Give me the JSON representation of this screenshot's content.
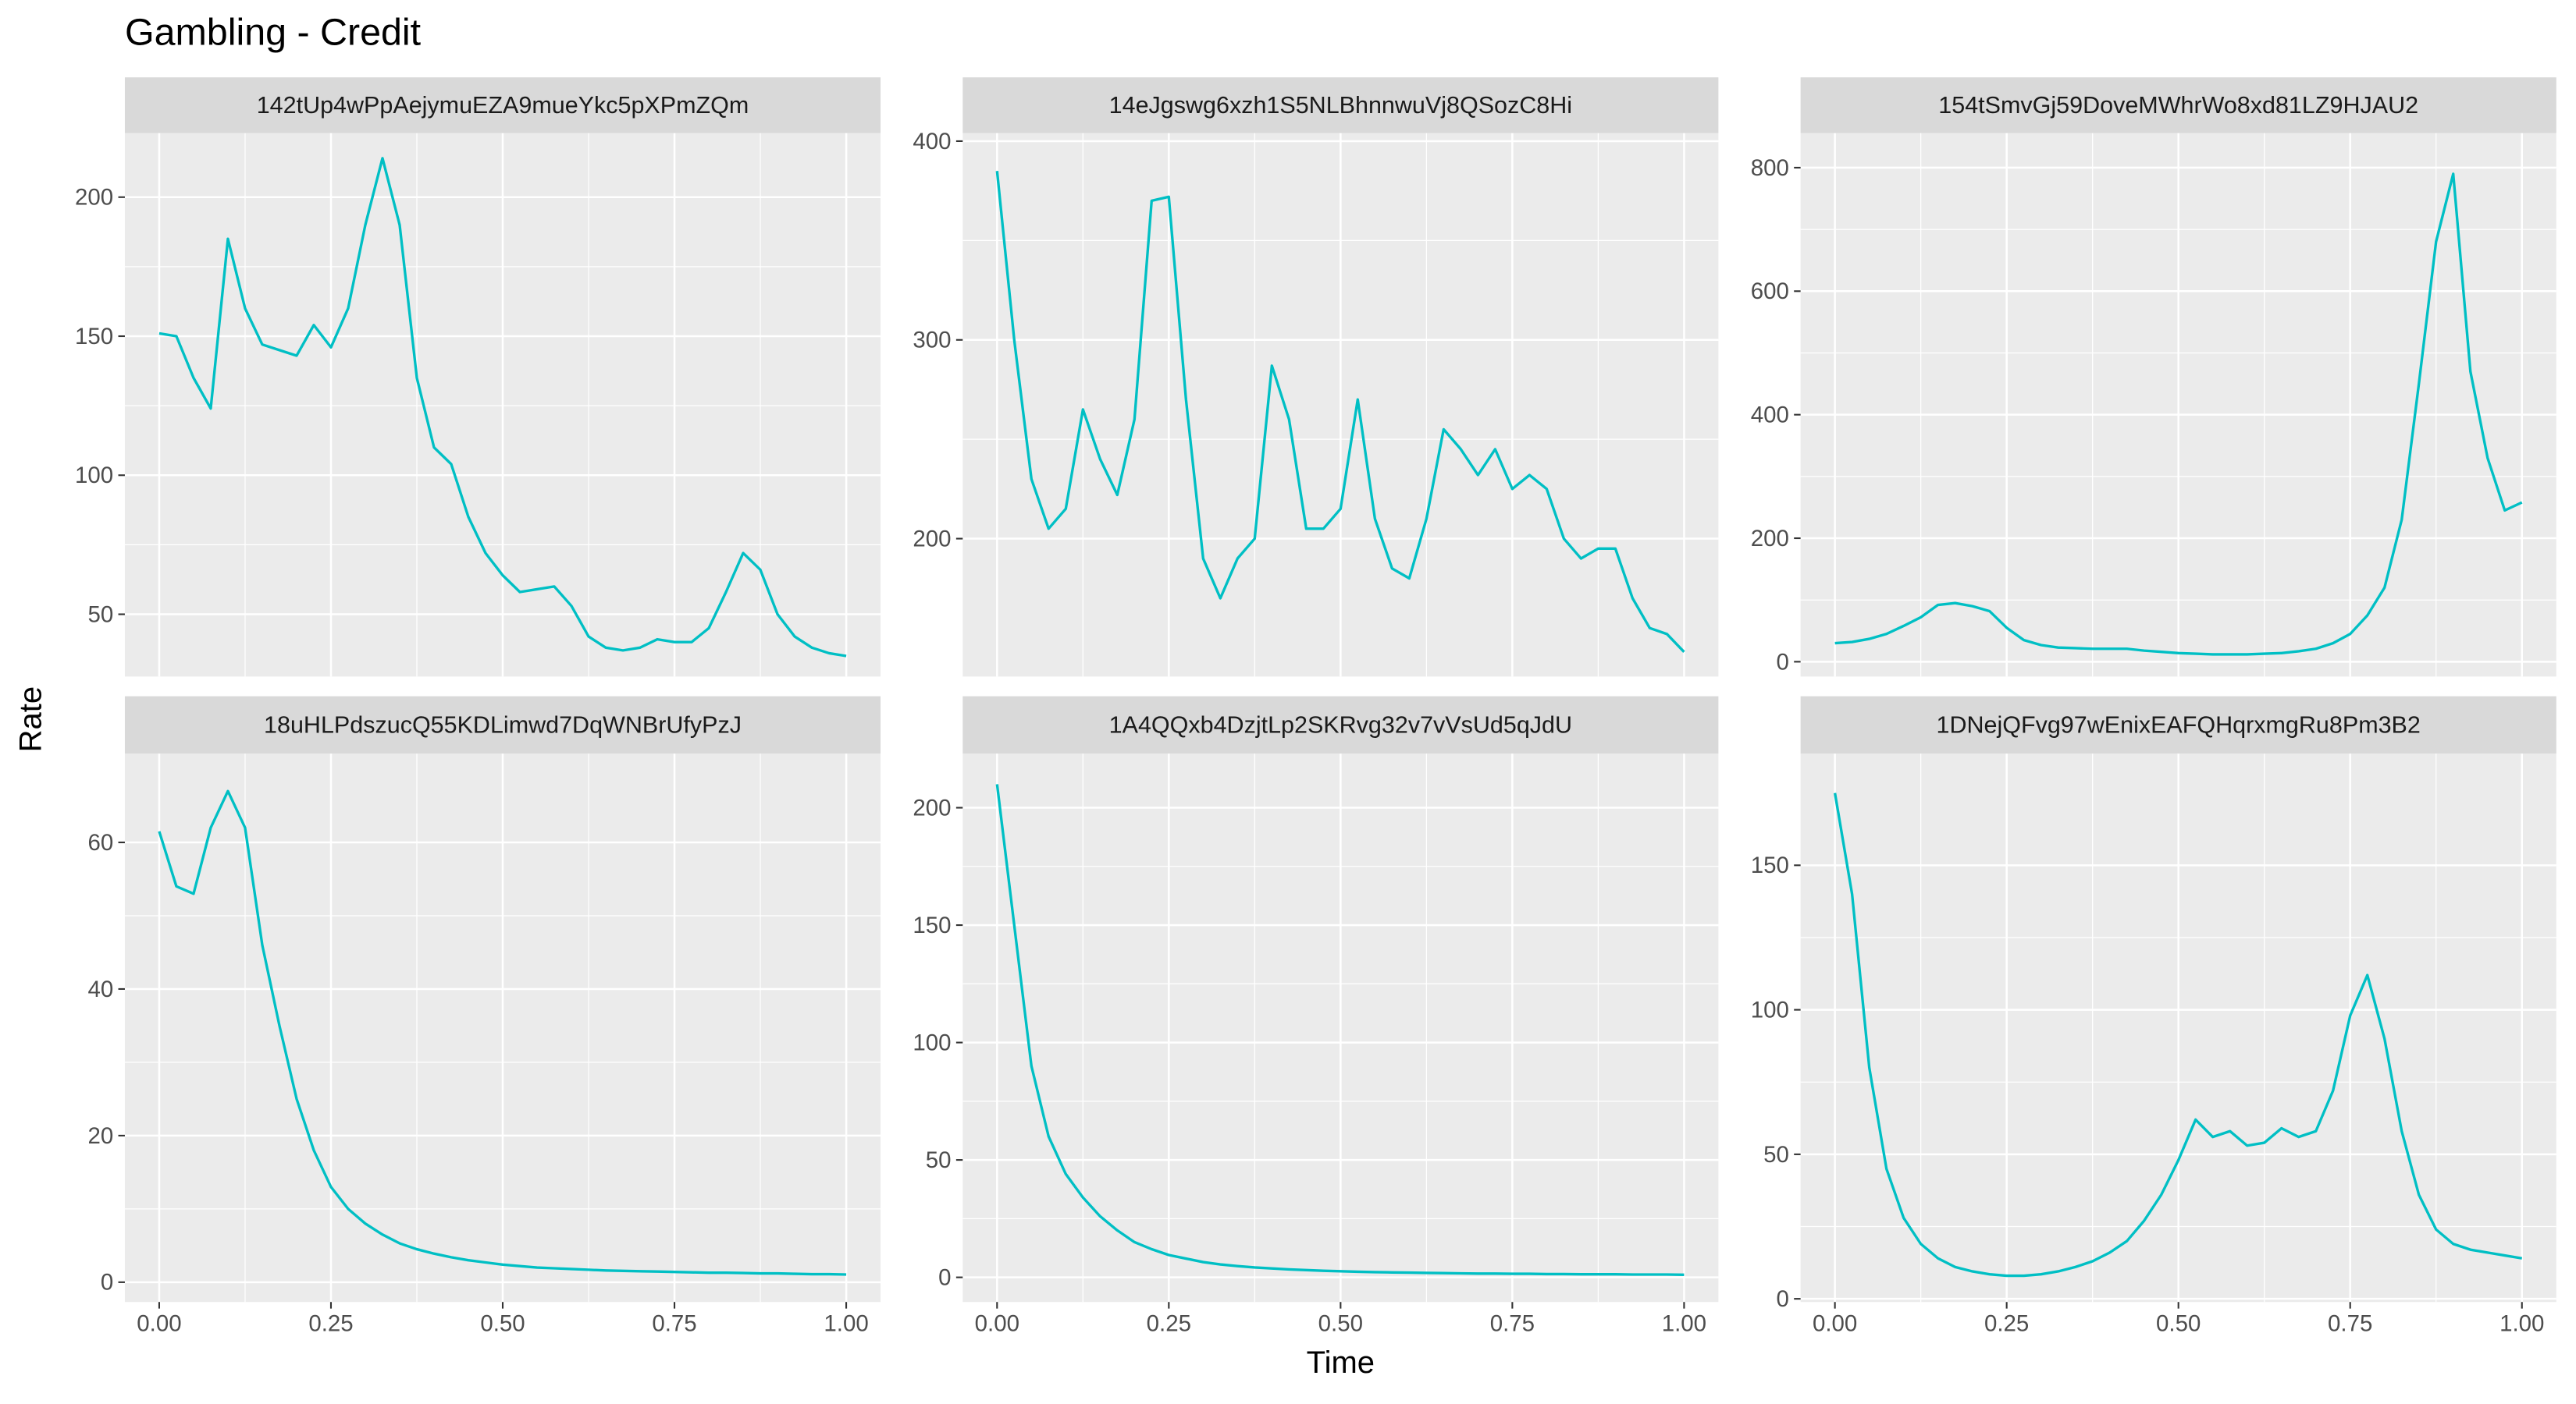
{
  "title": "Gambling - Credit",
  "x_label": "Time",
  "y_label": "Rate",
  "chart_data": [
    {
      "type": "line",
      "title": "142tUp4wPpAejymuEZA9mueYkc5pXPmZQm",
      "color": "#00BFC4",
      "x": [
        0,
        0.025,
        0.05,
        0.075,
        0.1,
        0.125,
        0.15,
        0.175,
        0.2,
        0.225,
        0.25,
        0.275,
        0.3,
        0.325,
        0.35,
        0.375,
        0.4,
        0.425,
        0.45,
        0.475,
        0.5,
        0.525,
        0.55,
        0.575,
        0.6,
        0.625,
        0.65,
        0.675,
        0.7,
        0.725,
        0.75,
        0.775,
        0.8,
        0.825,
        0.85,
        0.875,
        0.9,
        0.925,
        0.95,
        0.975,
        1
      ],
      "values": [
        151,
        150,
        135,
        124,
        185,
        160,
        147,
        145,
        143,
        154,
        146,
        160,
        190,
        214,
        190,
        135,
        110,
        104,
        85,
        72,
        64,
        58,
        59,
        60,
        53,
        42,
        38,
        37,
        38,
        41,
        40,
        40,
        45,
        58,
        72,
        66,
        50,
        42,
        38,
        36,
        35
      ],
      "xlim": [
        -0.05,
        1.05
      ],
      "ylim": [
        27.6,
        223
      ],
      "xticks": [
        0,
        0.25,
        0.5,
        0.75,
        1
      ],
      "yticks": [
        50,
        100,
        150,
        200
      ]
    },
    {
      "type": "line",
      "title": "14eJgswg6xzh1S5NLBhnnwuVj8QSozC8Hi",
      "color": "#00BFC4",
      "x": [
        0,
        0.025,
        0.05,
        0.075,
        0.1,
        0.125,
        0.15,
        0.175,
        0.2,
        0.225,
        0.25,
        0.275,
        0.3,
        0.325,
        0.35,
        0.375,
        0.4,
        0.425,
        0.45,
        0.475,
        0.5,
        0.525,
        0.55,
        0.575,
        0.6,
        0.625,
        0.65,
        0.675,
        0.7,
        0.725,
        0.75,
        0.775,
        0.8,
        0.825,
        0.85,
        0.875,
        0.9,
        0.925,
        0.95,
        0.975,
        1
      ],
      "values": [
        385,
        300,
        230,
        205,
        215,
        265,
        240,
        222,
        260,
        370,
        372,
        270,
        190,
        170,
        190,
        200,
        287,
        260,
        205,
        205,
        215,
        270,
        210,
        185,
        180,
        210,
        255,
        245,
        232,
        245,
        225,
        232,
        225,
        200,
        190,
        195,
        195,
        170,
        155,
        152,
        143
      ],
      "xlim": [
        -0.05,
        1.05
      ],
      "ylim": [
        130.6,
        404
      ],
      "xticks": [
        0,
        0.25,
        0.5,
        0.75,
        1
      ],
      "yticks": [
        200,
        300,
        400
      ]
    },
    {
      "type": "line",
      "title": "154tSmvGj59DoveMWhrWo8xd81LZ9HJAU2",
      "color": "#00BFC4",
      "x": [
        0,
        0.025,
        0.05,
        0.075,
        0.1,
        0.125,
        0.15,
        0.175,
        0.2,
        0.225,
        0.25,
        0.275,
        0.3,
        0.325,
        0.35,
        0.375,
        0.4,
        0.425,
        0.45,
        0.475,
        0.5,
        0.525,
        0.55,
        0.575,
        0.6,
        0.625,
        0.65,
        0.675,
        0.7,
        0.725,
        0.75,
        0.775,
        0.8,
        0.825,
        0.85,
        0.875,
        0.9,
        0.925,
        0.95,
        0.975,
        1
      ],
      "values": [
        30,
        32,
        37,
        45,
        58,
        72,
        92,
        95,
        90,
        82,
        55,
        35,
        27,
        23,
        22,
        21,
        21,
        21,
        18,
        16,
        14,
        13,
        12,
        12,
        12,
        13,
        14,
        17,
        21,
        30,
        45,
        75,
        120,
        230,
        450,
        680,
        790,
        470,
        330,
        245,
        258
      ],
      "xlim": [
        -0.05,
        1.05
      ],
      "ylim": [
        -24,
        855.8
      ],
      "xticks": [
        0,
        0.25,
        0.5,
        0.75,
        1
      ],
      "yticks": [
        0,
        200,
        400,
        600,
        800
      ]
    },
    {
      "type": "line",
      "title": "18uHLPdszucQ55KDLimwd7DqWNBrUfyPzJ",
      "color": "#00BFC4",
      "x": [
        0,
        0.025,
        0.05,
        0.075,
        0.1,
        0.125,
        0.15,
        0.175,
        0.2,
        0.225,
        0.25,
        0.275,
        0.3,
        0.325,
        0.35,
        0.375,
        0.4,
        0.425,
        0.45,
        0.475,
        0.5,
        0.525,
        0.55,
        0.575,
        0.6,
        0.625,
        0.65,
        0.675,
        0.7,
        0.725,
        0.75,
        0.775,
        0.8,
        0.825,
        0.85,
        0.875,
        0.9,
        0.925,
        0.95,
        0.975,
        1
      ],
      "values": [
        61.5,
        54,
        53,
        62,
        67,
        62,
        46,
        35,
        25,
        18,
        13,
        10,
        8,
        6.5,
        5.3,
        4.5,
        3.9,
        3.4,
        3,
        2.7,
        2.4,
        2.2,
        2,
        1.9,
        1.8,
        1.7,
        1.6,
        1.55,
        1.5,
        1.45,
        1.4,
        1.35,
        1.3,
        1.3,
        1.25,
        1.2,
        1.2,
        1.15,
        1.1,
        1.1,
        1.05
      ],
      "xlim": [
        -0.05,
        1.05
      ],
      "ylim": [
        -2.7,
        72.1
      ],
      "xticks": [
        {
          "value": 0,
          "label": "0.00"
        },
        {
          "value": 0.25,
          "label": "0.25"
        },
        {
          "value": 0.5,
          "label": "0.50"
        },
        {
          "value": 0.75,
          "label": "0.75"
        },
        {
          "value": 1,
          "label": "1.00"
        }
      ],
      "yticks": [
        0,
        20,
        40,
        60
      ]
    },
    {
      "type": "line",
      "title": "1A4QQxb4DzjtLp2SKRvg32v7vVsUd5qJdU",
      "color": "#00BFC4",
      "x": [
        0,
        0.025,
        0.05,
        0.075,
        0.1,
        0.125,
        0.15,
        0.175,
        0.2,
        0.225,
        0.25,
        0.275,
        0.3,
        0.325,
        0.35,
        0.375,
        0.4,
        0.425,
        0.45,
        0.475,
        0.5,
        0.525,
        0.55,
        0.575,
        0.6,
        0.625,
        0.65,
        0.675,
        0.7,
        0.725,
        0.75,
        0.775,
        0.8,
        0.825,
        0.85,
        0.875,
        0.9,
        0.925,
        0.95,
        0.975,
        1
      ],
      "values": [
        210,
        150,
        90,
        60,
        44,
        34,
        26,
        20,
        15,
        12,
        9.5,
        8,
        6.5,
        5.5,
        4.8,
        4.2,
        3.8,
        3.4,
        3.1,
        2.8,
        2.6,
        2.4,
        2.2,
        2.1,
        2,
        1.9,
        1.8,
        1.7,
        1.6,
        1.6,
        1.5,
        1.5,
        1.4,
        1.4,
        1.3,
        1.3,
        1.3,
        1.2,
        1.2,
        1.2,
        1.1
      ],
      "xlim": [
        -0.05,
        1.05
      ],
      "ylim": [
        -10.5,
        223
      ],
      "xticks": [
        {
          "value": 0,
          "label": "0.00"
        },
        {
          "value": 0.25,
          "label": "0.25"
        },
        {
          "value": 0.5,
          "label": "0.50"
        },
        {
          "value": 0.75,
          "label": "0.75"
        },
        {
          "value": 1,
          "label": "1.00"
        }
      ],
      "yticks": [
        0,
        50,
        100,
        150,
        200
      ]
    },
    {
      "type": "line",
      "title": "1DNejQFvg97wEnixEAFQHqrxmgRu8Pm3B2",
      "color": "#00BFC4",
      "x": [
        0,
        0.025,
        0.05,
        0.075,
        0.1,
        0.125,
        0.15,
        0.175,
        0.2,
        0.225,
        0.25,
        0.275,
        0.3,
        0.325,
        0.35,
        0.375,
        0.4,
        0.425,
        0.45,
        0.475,
        0.5,
        0.525,
        0.55,
        0.575,
        0.6,
        0.625,
        0.65,
        0.675,
        0.7,
        0.725,
        0.75,
        0.775,
        0.8,
        0.825,
        0.85,
        0.875,
        0.9,
        0.925,
        0.95,
        0.975,
        1
      ],
      "values": [
        175,
        140,
        80,
        45,
        28,
        19,
        14,
        11,
        9.5,
        8.5,
        8,
        8,
        8.5,
        9.5,
        11,
        13,
        16,
        20,
        27,
        36,
        48,
        62,
        56,
        58,
        53,
        54,
        59,
        56,
        58,
        72,
        98,
        112,
        90,
        58,
        36,
        24,
        19,
        17,
        16,
        15,
        14
      ],
      "xlim": [
        -0.05,
        1.05
      ],
      "ylim": [
        -1.1,
        188.6
      ],
      "xticks": [
        {
          "value": 0,
          "label": "0.00"
        },
        {
          "value": 0.25,
          "label": "0.25"
        },
        {
          "value": 0.5,
          "label": "0.50"
        },
        {
          "value": 0.75,
          "label": "0.75"
        },
        {
          "value": 1,
          "label": "1.00"
        }
      ],
      "yticks": [
        0,
        50,
        100,
        150
      ]
    }
  ]
}
